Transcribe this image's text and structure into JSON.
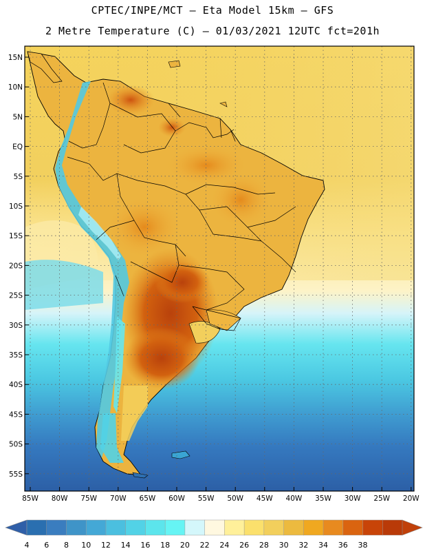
{
  "header": {
    "title_line1": "CPTEC/INPE/MCT –  Eta Model 15km – GFS",
    "title_line2": "2 Metre Temperature (C) – 01/03/2021 12UTC fct=201h"
  },
  "map": {
    "region": "South America",
    "lat_ticks": [
      "15N",
      "10N",
      "5N",
      "EQ",
      "5S",
      "10S",
      "15S",
      "20S",
      "25S",
      "30S",
      "35S",
      "40S",
      "45S",
      "50S",
      "55S"
    ],
    "lon_ticks": [
      "85W",
      "80W",
      "75W",
      "70W",
      "65W",
      "60W",
      "55W",
      "50W",
      "45W",
      "40W",
      "35W",
      "30W",
      "25W",
      "20W"
    ],
    "ocean_gradient_note_color": "#f2cf5c"
  },
  "colorbar": {
    "labels": [
      "4",
      "6",
      "8",
      "10",
      "12",
      "14",
      "16",
      "18",
      "20",
      "22",
      "24",
      "26",
      "28",
      "30",
      "32",
      "34",
      "36",
      "38"
    ],
    "colors": [
      "#2a6fb0",
      "#3a7dbf",
      "#3f94c8",
      "#44a8d6",
      "#4bbfdf",
      "#52d2e6",
      "#5ce5ec",
      "#66f4f4",
      "#d4f7fb",
      "#fff8e0",
      "#fff09a",
      "#fbe06c",
      "#f2cf5c",
      "#ecba3f",
      "#f0a820",
      "#e88a1f",
      "#da6410",
      "#c84408",
      "#b93a08"
    ],
    "underflow_color": "#2f5fa8",
    "overflow_color": "#c0400a"
  }
}
